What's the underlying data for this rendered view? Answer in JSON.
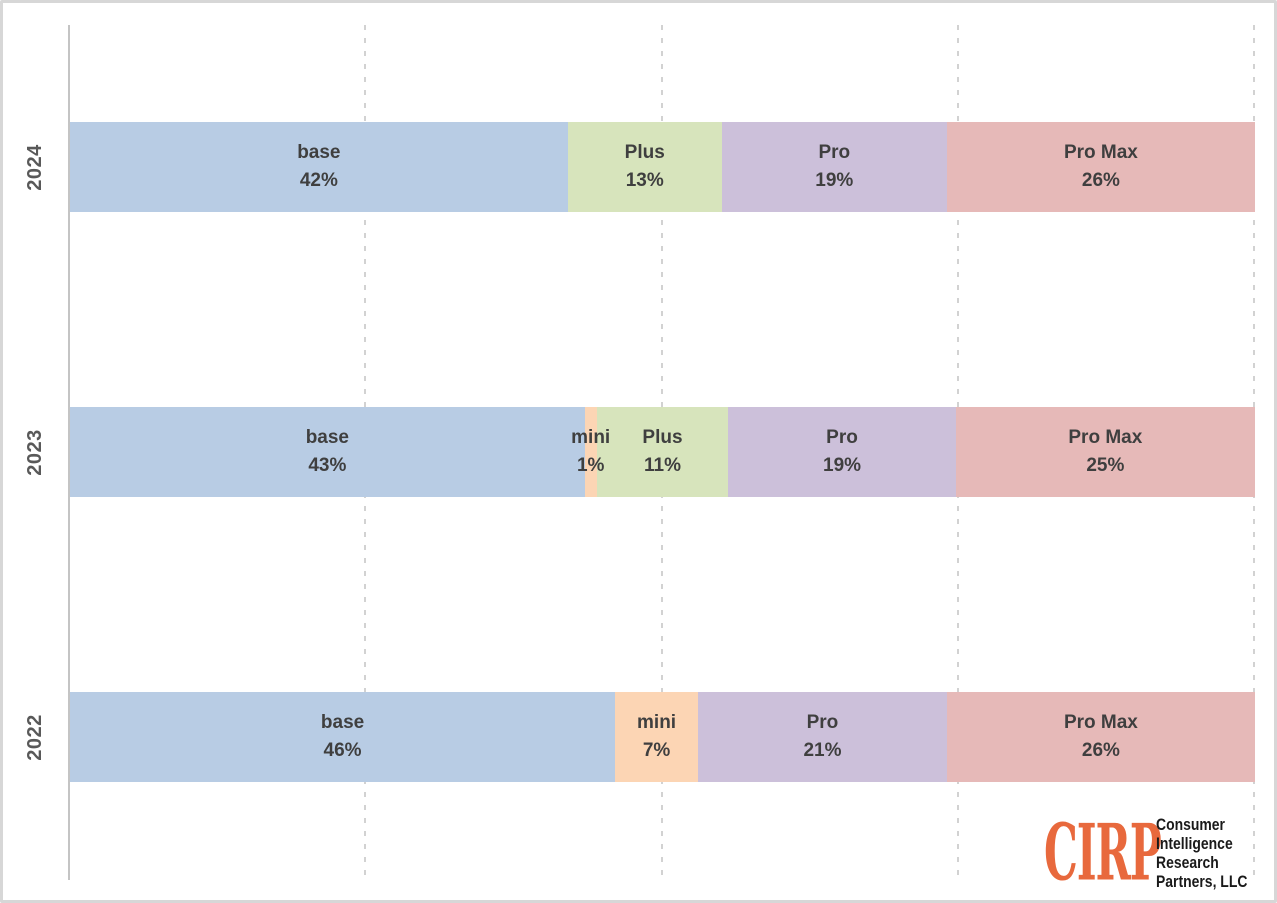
{
  "chart_data": {
    "type": "bar",
    "subtype": "horizontal-stacked",
    "orientation": "horizontal",
    "title": "",
    "categories": [
      "2024",
      "2023",
      "2022"
    ],
    "unit": "%",
    "rows": [
      {
        "year": "2024",
        "segments": [
          {
            "label": "base",
            "value": 42
          },
          {
            "label": "Plus",
            "value": 13
          },
          {
            "label": "Pro",
            "value": 19
          },
          {
            "label": "Pro Max",
            "value": 26
          }
        ]
      },
      {
        "year": "2023",
        "segments": [
          {
            "label": "base",
            "value": 43
          },
          {
            "label": "mini",
            "value": 1
          },
          {
            "label": "Plus",
            "value": 11
          },
          {
            "label": "Pro",
            "value": 19
          },
          {
            "label": "Pro Max",
            "value": 25
          }
        ]
      },
      {
        "year": "2022",
        "segments": [
          {
            "label": "base",
            "value": 46
          },
          {
            "label": "mini",
            "value": 7
          },
          {
            "label": "Pro",
            "value": 21
          },
          {
            "label": "Pro Max",
            "value": 26
          }
        ]
      }
    ],
    "colors": {
      "base": "#B8CCE4",
      "mini": "#FCD5B4",
      "Plus": "#D7E4BC",
      "Pro": "#CCC0DA",
      "Pro Max": "#E6B9B8"
    },
    "label_color": "#3F3F3F",
    "axis_label_color": "#595959",
    "gridline_color": "#D2D2D2",
    "xlim": [
      0,
      100
    ],
    "gridlines_pct": [
      25,
      50,
      75,
      100
    ],
    "grid_style": "dashed",
    "tick_labels_visible": false,
    "legend": "none"
  },
  "logo": {
    "brand": "CIRP",
    "brand_color": "#E8693D",
    "lines": [
      "Consumer",
      "Intelligence",
      "Research",
      "Partners, LLC"
    ]
  }
}
